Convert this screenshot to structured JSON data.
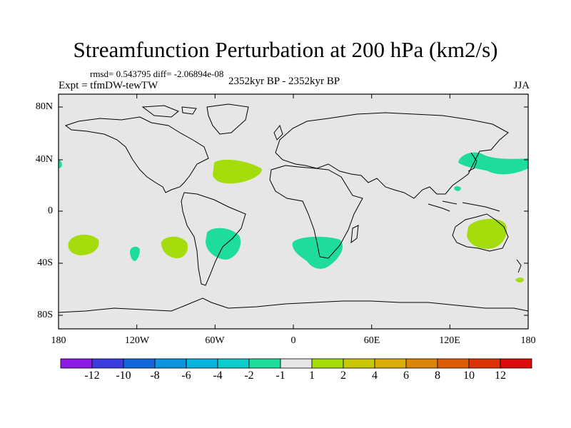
{
  "title": "Streamfunction Perturbation at 200 hPa (km2/s)",
  "stats": "rmsd= 0.543795 diff= -2.06894e-08",
  "experiment": "Expt = tfmDW-tewTW",
  "period": "2352kyr BP - 2352kyr BP",
  "season": "JJA",
  "colors": {
    "ocean_background": "#e6e6e6",
    "coast": "#000000",
    "pos_light": "#a4dc0c",
    "neg_light": "#1edc9c"
  },
  "y_axis_labels": [
    "80N",
    "40N",
    "0",
    "40S",
    "80S"
  ],
  "x_axis_labels": [
    "180",
    "120W",
    "60W",
    "0",
    "60E",
    "120E",
    "180"
  ],
  "colorbar": {
    "labels": [
      "-12",
      "-10",
      "-8",
      "-6",
      "-4",
      "-2",
      "-1",
      "1",
      "2",
      "4",
      "6",
      "8",
      "10",
      "12"
    ],
    "colors": [
      "#8c1ce4",
      "#3c3cdc",
      "#1464dc",
      "#0c94dc",
      "#08b4dc",
      "#0ccccc",
      "#1edc9c",
      "#e6e6e6",
      "#a4dc0c",
      "#c8c808",
      "#dcac08",
      "#dc8408",
      "#dc5c08",
      "#dc3408",
      "#dc0c0c"
    ]
  }
}
